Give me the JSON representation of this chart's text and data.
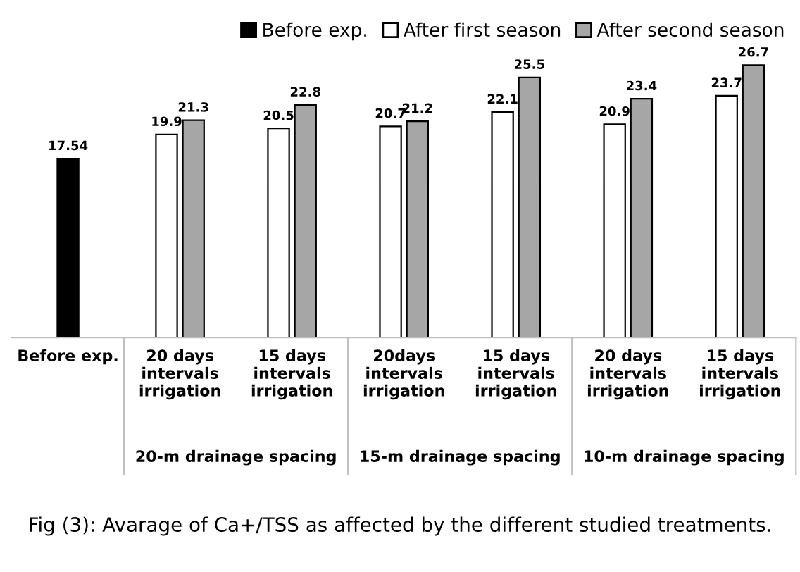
{
  "chart_data": {
    "type": "bar",
    "categories": [
      "Before exp.",
      "20 days\nintervals\nirrigation",
      "15 days\nintervals\nirrigation",
      "20days\nintervals\nirrigation",
      "15 days\nintervals\nirrigation",
      "20 days\nintervals\nirrigation",
      "15 days\nintervals\nirrigation"
    ],
    "series": [
      {
        "name": "Before exp.",
        "color": "#000000",
        "values": [
          17.54,
          null,
          null,
          null,
          null,
          null,
          null
        ]
      },
      {
        "name": "After first season",
        "color": "#ffffff",
        "values": [
          null,
          19.9,
          20.5,
          20.7,
          22.1,
          20.9,
          23.7
        ]
      },
      {
        "name": "After second season",
        "color": "#a6a6a6",
        "values": [
          null,
          21.3,
          22.8,
          21.2,
          25.5,
          23.4,
          26.7
        ]
      }
    ],
    "annotations": [
      "20-m drainage spacing",
      "15-m drainage spacing",
      "10-m drainage spacing",
      "Fig (3): Avarage of Ca+/TSS as affected by the different studied treatments."
    ],
    "data_labels": true,
    "legend": "top right",
    "grid": false
  }
}
